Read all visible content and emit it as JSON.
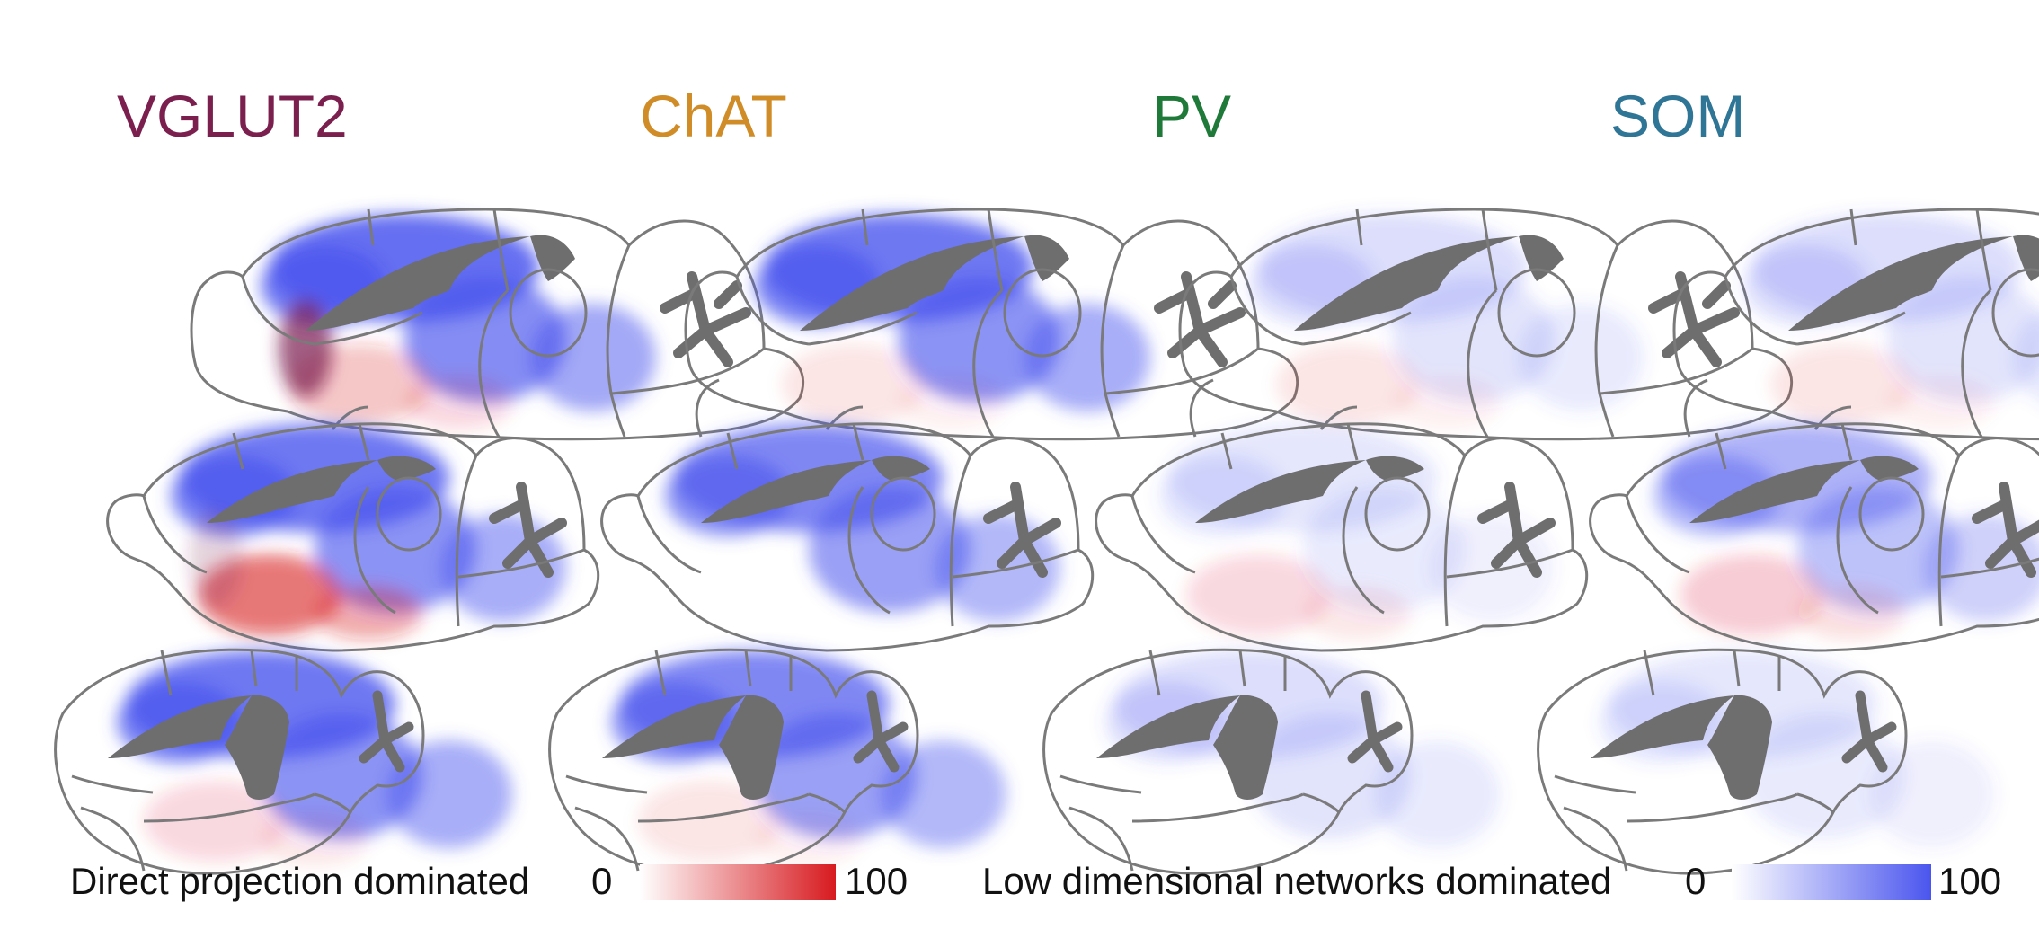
{
  "columns": [
    {
      "label": "VGLUT2",
      "color": "#7b1f4f"
    },
    {
      "label": "ChAT",
      "color": "#d08c27"
    },
    {
      "label": "PV",
      "color": "#1f7a3a"
    },
    {
      "label": "SOM",
      "color": "#2f7596"
    }
  ],
  "legend": {
    "direct": {
      "label": "Direct projection dominated",
      "min": "0",
      "max": "100",
      "color": "#d71a1f"
    },
    "lowdim": {
      "label": "Low dimensional networks dominated",
      "min": "0",
      "max": "100",
      "color": "#4a55ee"
    }
  },
  "maps": [
    [
      {
        "blue": 0.85,
        "red": 0.25,
        "purple": 0.7
      },
      {
        "blue": 0.8,
        "red": 0.1,
        "purple": 0.0
      },
      {
        "blue": 0.2,
        "red": 0.1,
        "purple": 0.0
      },
      {
        "blue": 0.2,
        "red": 0.1,
        "purple": 0.0
      }
    ],
    [
      {
        "blue": 0.8,
        "red": 0.6,
        "purple": 0.2
      },
      {
        "blue": 0.7,
        "red": 0.0,
        "purple": 0.0
      },
      {
        "blue": 0.15,
        "red": 0.15,
        "purple": 0.0
      },
      {
        "blue": 0.45,
        "red": 0.2,
        "purple": 0.0
      }
    ],
    [
      {
        "blue": 0.8,
        "red": 0.15,
        "purple": 0.0
      },
      {
        "blue": 0.7,
        "red": 0.1,
        "purple": 0.0
      },
      {
        "blue": 0.2,
        "red": 0.0,
        "purple": 0.0
      },
      {
        "blue": 0.15,
        "red": 0.0,
        "purple": 0.0
      }
    ]
  ]
}
